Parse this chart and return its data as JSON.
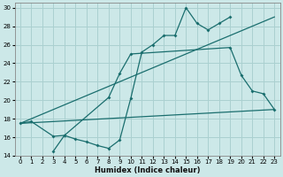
{
  "background_color": "#cce8e8",
  "grid_color": "#aad0d0",
  "line_color": "#1a6e6e",
  "xlabel": "Humidex (Indice chaleur)",
  "xlim": [
    -0.5,
    23.5
  ],
  "ylim": [
    14,
    30.5
  ],
  "yticks": [
    14,
    16,
    18,
    20,
    22,
    24,
    26,
    28,
    30
  ],
  "xticks": [
    0,
    1,
    2,
    3,
    4,
    5,
    6,
    7,
    8,
    9,
    10,
    11,
    12,
    13,
    14,
    15,
    16,
    17,
    18,
    19,
    20,
    21,
    22,
    23
  ],
  "line_straight_upper": {
    "x": [
      0,
      23
    ],
    "y": [
      17.5,
      29.0
    ]
  },
  "line_straight_lower": {
    "x": [
      0,
      23
    ],
    "y": [
      17.5,
      19.0
    ]
  },
  "curve1_x": [
    3,
    4,
    5,
    6,
    7,
    8,
    9,
    10,
    11,
    12,
    13,
    14,
    15,
    16,
    17,
    18,
    19
  ],
  "curve1_y": [
    14.5,
    16.2,
    15.8,
    15.5,
    15.1,
    14.8,
    15.7,
    20.2,
    25.2,
    26.0,
    27.0,
    27.0,
    30.0,
    28.3,
    27.6,
    28.3,
    29.0
  ],
  "curve2_x": [
    0,
    1,
    3,
    4,
    8,
    9,
    10,
    19,
    20,
    21,
    22,
    23
  ],
  "curve2_y": [
    17.5,
    17.7,
    16.1,
    16.2,
    20.3,
    22.9,
    25.0,
    25.7,
    22.7,
    21.0,
    20.7,
    19.0
  ]
}
